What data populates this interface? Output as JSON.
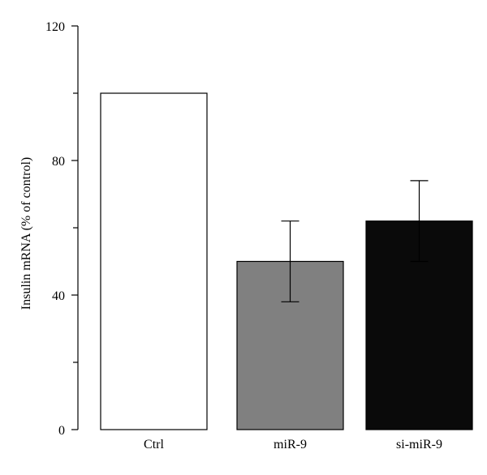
{
  "chart_data": {
    "type": "bar",
    "categories": [
      "Ctrl",
      "miR-9",
      "si-miR-9"
    ],
    "values": [
      100,
      50,
      62
    ],
    "error": [
      0,
      12,
      12
    ],
    "bar_colors": [
      "#ffffff",
      "#808080",
      "#0a0a0a"
    ],
    "title": "",
    "xlabel": "",
    "ylabel": "Insulin mRNA (% of control)",
    "ylim": [
      0,
      120
    ],
    "yticks": [
      0,
      40,
      80,
      120
    ],
    "minor_yticks": [
      20,
      60,
      100
    ],
    "grid": false,
    "legend": "none"
  }
}
